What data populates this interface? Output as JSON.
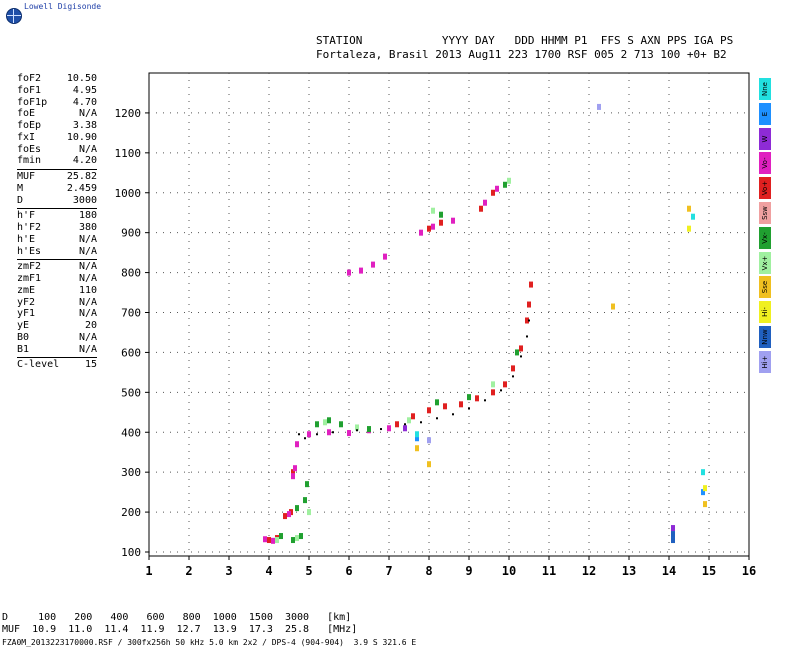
{
  "brand": {
    "name": "Lowell Digisonde",
    "logo_icon": "globe-icon"
  },
  "header": {
    "line1": "STATION            YYYY DAY   DDD HHMM P1  FFS S AXN PPS IGA PS",
    "line2": "Fortaleza, Brasil 2013 Aug11 223 1700 RSF 005 2 713 100 +0+ B2"
  },
  "params": {
    "groups": [
      [
        {
          "label": "foF2",
          "value": "10.50"
        },
        {
          "label": "foF1",
          "value": "4.95"
        },
        {
          "label": "foF1p",
          "value": "4.70"
        },
        {
          "label": "foE",
          "value": "N/A"
        },
        {
          "label": "foEp",
          "value": "3.38"
        },
        {
          "label": "fxI",
          "value": "10.90"
        },
        {
          "label": "foEs",
          "value": "N/A"
        },
        {
          "label": "fmin",
          "value": "4.20"
        }
      ],
      [
        {
          "label": "MUF",
          "value": "25.82"
        },
        {
          "label": "M",
          "value": "2.459"
        },
        {
          "label": "D",
          "value": "3000"
        }
      ],
      [
        {
          "label": "h'F",
          "value": "180"
        },
        {
          "label": "h'F2",
          "value": "380"
        },
        {
          "label": "h'E",
          "value": "N/A"
        },
        {
          "label": "h'Es",
          "value": "N/A"
        }
      ],
      [
        {
          "label": "zmF2",
          "value": "N/A"
        },
        {
          "label": "zmF1",
          "value": "N/A"
        },
        {
          "label": "zmE",
          "value": "110"
        },
        {
          "label": "yF2",
          "value": "N/A"
        },
        {
          "label": "yF1",
          "value": "N/A"
        },
        {
          "label": "yE",
          "value": "20"
        },
        {
          "label": "B0",
          "value": "N/A"
        },
        {
          "label": "B1",
          "value": "N/A"
        }
      ],
      [
        {
          "label": "C-level",
          "value": "15"
        }
      ]
    ]
  },
  "legend": [
    {
      "label": "Nne",
      "color": "#22e0e0"
    },
    {
      "label": "E",
      "color": "#1e90ff"
    },
    {
      "label": "W",
      "color": "#8e2bd6"
    },
    {
      "label": "Vo-",
      "color": "#e020c0"
    },
    {
      "label": "Vo+",
      "color": "#e02020"
    },
    {
      "label": "Ssw",
      "color": "#f0a0a0"
    },
    {
      "label": "Vx-",
      "color": "#20a030"
    },
    {
      "label": "Vx+",
      "color": "#a0f0a0"
    },
    {
      "label": "Sse",
      "color": "#f0c020"
    },
    {
      "label": "Hi-",
      "color": "#f0f020"
    },
    {
      "label": "Nnw",
      "color": "#2060c0"
    },
    {
      "label": "Hi+",
      "color": "#a0a0f0"
    }
  ],
  "bottom": {
    "line1": "D     100   200   400   600   800  1000  1500  3000   [km]",
    "line2": "MUF  10.9  11.0  11.4  11.9  12.7  13.9  17.3  25.8   [MHz]",
    "line3": "FZA0M_2013223170000.RSF / 300fx256h 50 kHz 5.0 km 2x2 / DPS-4 (904-904)  3.9 S 321.6 E"
  },
  "chart_data": {
    "type": "scatter",
    "xlabel": "",
    "ylabel": "",
    "xlim": [
      1,
      16
    ],
    "ylim": [
      90,
      1300
    ],
    "x_ticks": [
      1,
      2,
      3,
      4,
      5,
      6,
      7,
      8,
      9,
      10,
      11,
      12,
      13,
      14,
      15,
      16
    ],
    "y_ticks": [
      100,
      200,
      300,
      400,
      500,
      600,
      700,
      800,
      900,
      1000,
      1100,
      1200
    ],
    "grid": true,
    "series": [
      {
        "name": "Vo+",
        "color": "#e02020",
        "points": [
          [
            4.0,
            130
          ],
          [
            4.2,
            135
          ],
          [
            4.4,
            190
          ],
          [
            4.55,
            200
          ],
          [
            4.6,
            300
          ],
          [
            7.2,
            420
          ],
          [
            7.6,
            440
          ],
          [
            8.0,
            455
          ],
          [
            8.4,
            465
          ],
          [
            8.8,
            470
          ],
          [
            9.2,
            485
          ],
          [
            9.6,
            500
          ],
          [
            9.9,
            520
          ],
          [
            10.1,
            560
          ],
          [
            10.3,
            610
          ],
          [
            10.45,
            680
          ],
          [
            10.5,
            720
          ],
          [
            10.55,
            770
          ],
          [
            8.0,
            910
          ],
          [
            8.3,
            925
          ],
          [
            9.3,
            960
          ],
          [
            9.6,
            1000
          ]
        ]
      },
      {
        "name": "Vo-",
        "color": "#e020c0",
        "points": [
          [
            3.9,
            132
          ],
          [
            4.1,
            128
          ],
          [
            4.5,
            195
          ],
          [
            4.6,
            290
          ],
          [
            4.65,
            310
          ],
          [
            4.7,
            370
          ],
          [
            5.0,
            395
          ],
          [
            5.5,
            400
          ],
          [
            6.0,
            398
          ],
          [
            6.5,
            405
          ],
          [
            7.0,
            410
          ],
          [
            6.0,
            800
          ],
          [
            6.3,
            805
          ],
          [
            6.6,
            820
          ],
          [
            6.9,
            840
          ],
          [
            7.8,
            900
          ],
          [
            8.1,
            915
          ],
          [
            8.6,
            930
          ],
          [
            9.4,
            975
          ],
          [
            9.7,
            1010
          ]
        ]
      },
      {
        "name": "Vx-",
        "color": "#20a030",
        "points": [
          [
            4.3,
            140
          ],
          [
            4.6,
            130
          ],
          [
            4.8,
            140
          ],
          [
            4.7,
            210
          ],
          [
            4.9,
            230
          ],
          [
            4.95,
            270
          ],
          [
            5.2,
            420
          ],
          [
            5.5,
            430
          ],
          [
            5.8,
            420
          ],
          [
            6.5,
            408
          ],
          [
            8.2,
            475
          ],
          [
            9.0,
            488
          ],
          [
            10.2,
            600
          ],
          [
            8.3,
            945
          ],
          [
            9.9,
            1020
          ]
        ]
      },
      {
        "name": "Vx+",
        "color": "#a0f0a0",
        "points": [
          [
            4.2,
            130
          ],
          [
            4.7,
            135
          ],
          [
            5.0,
            200
          ],
          [
            5.4,
            425
          ],
          [
            6.2,
            412
          ],
          [
            7.5,
            430
          ],
          [
            9.6,
            520
          ],
          [
            8.1,
            955
          ],
          [
            10.0,
            1030
          ]
        ]
      },
      {
        "name": "Sse",
        "color": "#f0c020",
        "points": [
          [
            7.7,
            360
          ],
          [
            8.0,
            320
          ],
          [
            12.6,
            715
          ],
          [
            14.5,
            960
          ],
          [
            14.1,
            130
          ],
          [
            14.9,
            220
          ]
        ]
      },
      {
        "name": "E",
        "color": "#1e90ff",
        "points": [
          [
            7.7,
            385
          ],
          [
            14.1,
            140
          ],
          [
            14.85,
            250
          ]
        ]
      },
      {
        "name": "W",
        "color": "#8e2bd6",
        "points": [
          [
            7.4,
            410
          ],
          [
            14.1,
            160
          ]
        ]
      },
      {
        "name": "Nne",
        "color": "#22e0e0",
        "points": [
          [
            7.7,
            395
          ],
          [
            14.85,
            300
          ],
          [
            14.6,
            940
          ]
        ]
      },
      {
        "name": "Hi-",
        "color": "#f0f020",
        "points": [
          [
            14.5,
            910
          ],
          [
            14.9,
            260
          ]
        ]
      },
      {
        "name": "Hi+",
        "color": "#a0a0f0",
        "points": [
          [
            12.25,
            1215
          ],
          [
            8.0,
            380
          ]
        ]
      },
      {
        "name": "Nnw",
        "color": "#2060c0",
        "points": [
          [
            14.1,
            130
          ],
          [
            14.1,
            145
          ]
        ]
      }
    ],
    "trace": {
      "color": "#000000",
      "points": [
        [
          4.75,
          395
        ],
        [
          4.9,
          385
        ],
        [
          5.2,
          395
        ],
        [
          5.6,
          400
        ],
        [
          6.2,
          405
        ],
        [
          6.8,
          408
        ],
        [
          7.4,
          420
        ],
        [
          7.8,
          425
        ],
        [
          8.2,
          435
        ],
        [
          8.6,
          445
        ],
        [
          9.0,
          460
        ],
        [
          9.4,
          480
        ],
        [
          9.8,
          505
        ],
        [
          10.1,
          540
        ],
        [
          10.3,
          590
        ],
        [
          10.45,
          640
        ],
        [
          10.5,
          680
        ]
      ]
    }
  }
}
